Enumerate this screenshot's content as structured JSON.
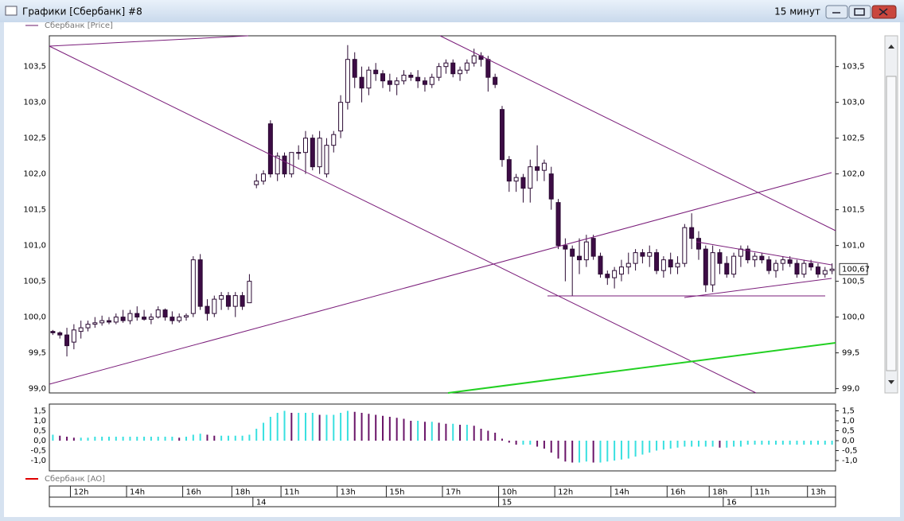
{
  "window": {
    "title": "Графики [Сбербанк] #8",
    "timeframe": "15 минут"
  },
  "chart_data": {
    "type": "candlestick",
    "legend": "Сбербанк [Price]",
    "colors": {
      "outline": "#2b0a33",
      "down": "#3d0c45",
      "up": "#ffffff"
    },
    "ylim": [
      98.94,
      103.93
    ],
    "yticks": [
      {
        "value": 99,
        "label": "99,0"
      },
      {
        "value": 99.5,
        "label": "99,5"
      },
      {
        "value": 100,
        "label": "100,0"
      },
      {
        "value": 100.5,
        "label": "100,5"
      },
      {
        "value": 101,
        "label": "101,0"
      },
      {
        "value": 101.5,
        "label": "101,5"
      },
      {
        "value": 102,
        "label": "102,0"
      },
      {
        "value": 102.5,
        "label": "102,5"
      },
      {
        "value": 103,
        "label": "103,0"
      },
      {
        "value": 103.5,
        "label": "103,5"
      }
    ],
    "last_price": {
      "value": 100.67,
      "label": "100,67"
    },
    "categories": [
      null,
      null,
      null,
      "12h",
      null,
      null,
      null,
      null,
      null,
      null,
      null,
      "14h",
      null,
      null,
      null,
      null,
      null,
      null,
      null,
      "16h",
      null,
      null,
      null,
      null,
      null,
      null,
      "18h",
      null,
      null,
      null,
      null,
      null,
      null,
      "11h",
      null,
      null,
      null,
      null,
      null,
      null,
      null,
      "13h",
      null,
      null,
      null,
      null,
      null,
      null,
      "15h",
      null,
      null,
      null,
      null,
      null,
      null,
      null,
      "17h",
      null,
      null,
      null,
      null,
      null,
      null,
      null,
      "10h",
      null,
      null,
      null,
      null,
      null,
      null,
      null,
      "12h",
      null,
      null,
      null,
      null,
      null,
      null,
      null,
      "14h",
      null,
      null,
      null,
      null,
      null,
      null,
      null,
      "16h",
      null,
      null,
      null,
      null,
      null,
      "18h",
      null,
      null,
      null,
      null,
      null,
      "11h",
      null,
      null,
      null,
      null,
      null,
      null,
      null,
      "13h",
      null,
      null,
      null
    ],
    "days": [
      null,
      null,
      null,
      null,
      null,
      null,
      null,
      null,
      null,
      null,
      null,
      null,
      null,
      null,
      null,
      null,
      null,
      null,
      null,
      null,
      null,
      null,
      null,
      null,
      null,
      null,
      null,
      null,
      null,
      "14",
      null,
      null,
      null,
      null,
      null,
      null,
      null,
      null,
      null,
      null,
      null,
      null,
      null,
      null,
      null,
      null,
      null,
      null,
      null,
      null,
      null,
      null,
      null,
      null,
      null,
      null,
      null,
      null,
      null,
      null,
      null,
      null,
      null,
      null,
      "15",
      null,
      null,
      null,
      null,
      null,
      null,
      null,
      null,
      null,
      null,
      null,
      null,
      null,
      null,
      null,
      null,
      null,
      null,
      null,
      null,
      null,
      null,
      null,
      null,
      null,
      null,
      null,
      null,
      null,
      null,
      null,
      "16",
      null,
      null,
      null,
      null,
      null,
      null,
      null,
      null,
      null,
      null,
      null,
      null,
      null,
      null,
      null
    ],
    "candles": [
      [
        99.8,
        99.82,
        99.75,
        99.78
      ],
      [
        99.78,
        99.8,
        99.7,
        99.75
      ],
      [
        99.75,
        99.85,
        99.45,
        99.6
      ],
      [
        99.65,
        99.9,
        99.55,
        99.82
      ],
      [
        99.8,
        99.95,
        99.7,
        99.85
      ],
      [
        99.85,
        99.95,
        99.8,
        99.9
      ],
      [
        99.9,
        100.0,
        99.85,
        99.92
      ],
      [
        99.92,
        100.02,
        99.88,
        99.95
      ],
      [
        99.95,
        100.0,
        99.9,
        99.93
      ],
      [
        99.93,
        100.05,
        99.9,
        100.0
      ],
      [
        100.0,
        100.1,
        99.92,
        99.95
      ],
      [
        99.95,
        100.1,
        99.9,
        100.05
      ],
      [
        100.05,
        100.15,
        99.95,
        100.0
      ],
      [
        100.0,
        100.1,
        99.95,
        99.97
      ],
      [
        99.97,
        100.05,
        99.9,
        100.0
      ],
      [
        100.0,
        100.15,
        99.98,
        100.1
      ],
      [
        100.1,
        100.12,
        99.95,
        100.0
      ],
      [
        100.0,
        100.08,
        99.9,
        99.95
      ],
      [
        99.95,
        100.05,
        99.92,
        100.0
      ],
      [
        100.0,
        100.05,
        99.95,
        100.02
      ],
      [
        100.05,
        100.85,
        100.0,
        100.8
      ],
      [
        100.8,
        100.88,
        100.1,
        100.15
      ],
      [
        100.15,
        100.25,
        99.95,
        100.05
      ],
      [
        100.05,
        100.3,
        100.0,
        100.25
      ],
      [
        100.25,
        100.35,
        100.1,
        100.3
      ],
      [
        100.3,
        100.35,
        100.1,
        100.15
      ],
      [
        100.15,
        100.35,
        100.0,
        100.3
      ],
      [
        100.3,
        100.35,
        100.1,
        100.15
      ],
      [
        100.2,
        100.6,
        100.2,
        100.5
      ],
      [
        101.85,
        102.0,
        101.8,
        101.9
      ],
      [
        101.9,
        102.05,
        101.85,
        102.0
      ],
      [
        102.7,
        102.75,
        101.95,
        102.0
      ],
      [
        102.0,
        102.3,
        101.9,
        102.25
      ],
      [
        102.25,
        102.3,
        101.95,
        102.0
      ],
      [
        102.0,
        102.3,
        101.95,
        102.3
      ],
      [
        102.3,
        102.4,
        102.2,
        102.3
      ],
      [
        102.3,
        102.6,
        102.0,
        102.5
      ],
      [
        102.5,
        102.55,
        102.05,
        102.1
      ],
      [
        102.1,
        102.6,
        102.0,
        102.5
      ],
      [
        102.0,
        102.5,
        101.95,
        102.4
      ],
      [
        102.4,
        102.6,
        102.3,
        102.55
      ],
      [
        102.6,
        103.1,
        102.5,
        103.0
      ],
      [
        103.0,
        103.8,
        102.9,
        103.6
      ],
      [
        103.6,
        103.7,
        103.2,
        103.35
      ],
      [
        103.35,
        103.5,
        103.0,
        103.2
      ],
      [
        103.2,
        103.5,
        103.1,
        103.45
      ],
      [
        103.45,
        103.55,
        103.3,
        103.4
      ],
      [
        103.4,
        103.45,
        103.2,
        103.3
      ],
      [
        103.3,
        103.4,
        103.15,
        103.25
      ],
      [
        103.25,
        103.35,
        103.1,
        103.3
      ],
      [
        103.3,
        103.45,
        103.25,
        103.38
      ],
      [
        103.38,
        103.42,
        103.3,
        103.35
      ],
      [
        103.35,
        103.45,
        103.2,
        103.3
      ],
      [
        103.3,
        103.35,
        103.15,
        103.25
      ],
      [
        103.25,
        103.4,
        103.2,
        103.35
      ],
      [
        103.35,
        103.55,
        103.3,
        103.5
      ],
      [
        103.5,
        103.6,
        103.4,
        103.55
      ],
      [
        103.55,
        103.6,
        103.35,
        103.4
      ],
      [
        103.4,
        103.5,
        103.3,
        103.45
      ],
      [
        103.45,
        103.6,
        103.4,
        103.55
      ],
      [
        103.55,
        103.75,
        103.5,
        103.65
      ],
      [
        103.65,
        103.7,
        103.5,
        103.6
      ],
      [
        103.6,
        103.65,
        103.15,
        103.35
      ],
      [
        103.35,
        103.4,
        103.2,
        103.25
      ],
      [
        102.9,
        102.95,
        102.1,
        102.2
      ],
      [
        102.2,
        102.25,
        101.75,
        101.9
      ],
      [
        101.9,
        102.0,
        101.75,
        101.95
      ],
      [
        101.95,
        102.0,
        101.6,
        101.8
      ],
      [
        101.8,
        102.2,
        101.6,
        102.1
      ],
      [
        102.1,
        102.4,
        101.9,
        102.05
      ],
      [
        102.05,
        102.2,
        101.9,
        102.15
      ],
      [
        102.0,
        102.1,
        101.5,
        101.65
      ],
      [
        101.6,
        101.65,
        100.95,
        101.0
      ],
      [
        101.0,
        101.1,
        100.5,
        100.95
      ],
      [
        100.95,
        101.0,
        100.3,
        100.85
      ],
      [
        100.85,
        101.1,
        100.6,
        100.8
      ],
      [
        100.8,
        101.15,
        100.7,
        101.05
      ],
      [
        101.1,
        101.15,
        100.8,
        100.85
      ],
      [
        100.85,
        100.9,
        100.55,
        100.6
      ],
      [
        100.6,
        100.65,
        100.45,
        100.55
      ],
      [
        100.55,
        100.7,
        100.4,
        100.65
      ],
      [
        100.6,
        100.8,
        100.5,
        100.7
      ],
      [
        100.7,
        100.9,
        100.6,
        100.75
      ],
      [
        100.75,
        100.95,
        100.65,
        100.9
      ],
      [
        100.9,
        100.95,
        100.75,
        100.85
      ],
      [
        100.85,
        101.0,
        100.7,
        100.9
      ],
      [
        100.9,
        100.95,
        100.6,
        100.65
      ],
      [
        100.65,
        100.85,
        100.55,
        100.8
      ],
      [
        100.8,
        100.9,
        100.6,
        100.7
      ],
      [
        100.7,
        100.85,
        100.6,
        100.75
      ],
      [
        100.75,
        101.3,
        100.7,
        101.25
      ],
      [
        101.25,
        101.45,
        100.95,
        101.1
      ],
      [
        101.1,
        101.2,
        100.8,
        100.95
      ],
      [
        100.95,
        101.0,
        100.35,
        100.45
      ],
      [
        100.45,
        101.0,
        100.35,
        100.9
      ],
      [
        100.9,
        100.95,
        100.6,
        100.75
      ],
      [
        100.75,
        100.85,
        100.55,
        100.6
      ],
      [
        100.6,
        100.9,
        100.55,
        100.85
      ],
      [
        100.85,
        101.0,
        100.7,
        100.95
      ],
      [
        100.95,
        101.0,
        100.75,
        100.8
      ],
      [
        100.8,
        100.9,
        100.7,
        100.85
      ],
      [
        100.85,
        100.9,
        100.75,
        100.8
      ],
      [
        100.8,
        100.85,
        100.6,
        100.65
      ],
      [
        100.65,
        100.8,
        100.55,
        100.75
      ],
      [
        100.75,
        100.85,
        100.65,
        100.8
      ],
      [
        100.8,
        100.85,
        100.7,
        100.75
      ],
      [
        100.75,
        100.8,
        100.55,
        100.6
      ],
      [
        100.6,
        100.8,
        100.55,
        100.75
      ],
      [
        100.75,
        100.8,
        100.65,
        100.7
      ],
      [
        100.7,
        100.75,
        100.55,
        100.6
      ],
      [
        100.6,
        100.7,
        100.55,
        100.65
      ],
      [
        100.65,
        100.75,
        100.6,
        100.67
      ]
    ],
    "indicator": {
      "type": "bar",
      "name": "Сбербанк [AO]",
      "legend_color": "#e00000",
      "up_color": "#38e0e0",
      "down_color": "#6a1468",
      "ylim": [
        -1.52,
        1.84
      ],
      "yticks": [
        {
          "value": -1,
          "label": "-1,0"
        },
        {
          "value": -0.5,
          "label": "-0,5"
        },
        {
          "value": 0,
          "label": "0,0"
        },
        {
          "value": 0.5,
          "label": "0,5"
        },
        {
          "value": 1,
          "label": "1,0"
        },
        {
          "value": 1.5,
          "label": "1,5"
        }
      ],
      "values": [
        0.3,
        0.25,
        0.2,
        0.15,
        0.15,
        0.15,
        0.2,
        0.2,
        0.2,
        0.2,
        0.2,
        0.2,
        0.2,
        0.2,
        0.2,
        0.2,
        0.2,
        0.2,
        0.15,
        0.2,
        0.3,
        0.35,
        0.3,
        0.25,
        0.25,
        0.25,
        0.25,
        0.25,
        0.3,
        0.6,
        0.9,
        1.2,
        1.4,
        1.5,
        1.4,
        1.4,
        1.4,
        1.4,
        1.3,
        1.3,
        1.3,
        1.4,
        1.5,
        1.45,
        1.4,
        1.35,
        1.3,
        1.25,
        1.2,
        1.15,
        1.1,
        1.0,
        1.0,
        0.95,
        0.95,
        0.9,
        0.85,
        0.85,
        0.8,
        0.8,
        0.75,
        0.6,
        0.5,
        0.4,
        0.1,
        -0.1,
        -0.2,
        -0.2,
        -0.2,
        -0.3,
        -0.4,
        -0.6,
        -0.9,
        -1.05,
        -1.1,
        -1.1,
        -1.05,
        -1.1,
        -1.1,
        -1.05,
        -1.0,
        -0.95,
        -0.9,
        -0.8,
        -0.7,
        -0.6,
        -0.5,
        -0.45,
        -0.4,
        -0.35,
        -0.3,
        -0.3,
        -0.3,
        -0.3,
        -0.3,
        -0.35,
        -0.35,
        -0.3,
        -0.3,
        -0.2,
        -0.2,
        -0.2,
        -0.2,
        -0.2,
        -0.2,
        -0.2,
        -0.2,
        -0.2,
        -0.2,
        -0.2,
        -0.2,
        -0.2
      ]
    }
  }
}
